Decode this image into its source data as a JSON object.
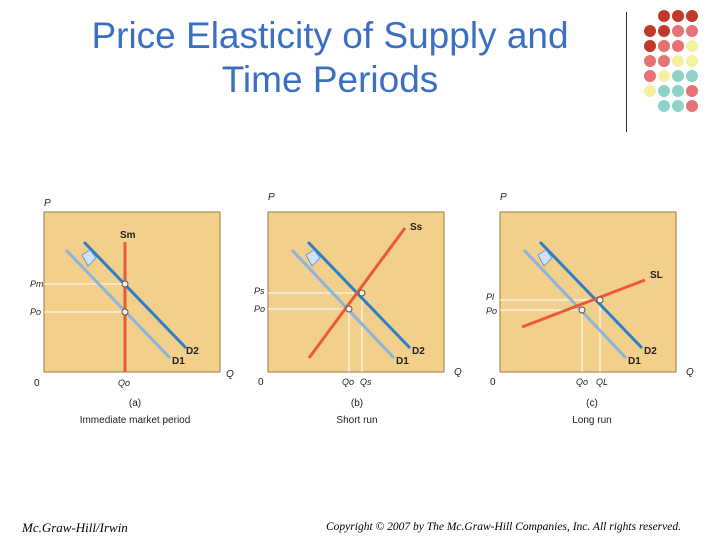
{
  "slide": {
    "title_line1": "Price Elasticity of Supply and",
    "title_line2": "Time Periods",
    "footer_left": "Mc.Graw-Hill/Irwin",
    "footer_right": "Copyright © 2007 by The Mc.Graw-Hill Companies, Inc. All rights reserved.",
    "dot_colors": [
      "#c0392b",
      "#e57373",
      "#f4f1a0",
      "#8fd3c8"
    ]
  },
  "panels": [
    {
      "axis_p": "P",
      "axis_q": "Q",
      "origin": "0",
      "supply_label": "Sm",
      "d1_label": "D1",
      "d2_label": "D2",
      "price_labels": [
        "Pm",
        "Po"
      ],
      "quantity_labels": [
        "Qo"
      ],
      "caption_letter": "(a)",
      "caption_text": "Immediate market period"
    },
    {
      "axis_p": "P",
      "axis_q": "Q",
      "origin": "0",
      "supply_label": "Ss",
      "d1_label": "D1",
      "d2_label": "D2",
      "price_labels": [
        "Ps",
        "Po"
      ],
      "quantity_labels": [
        "Qo",
        "Qs"
      ],
      "caption_letter": "(b)",
      "caption_text": "Short run"
    },
    {
      "axis_p": "P",
      "axis_q": "Q",
      "origin": "0",
      "supply_label": "SL",
      "d1_label": "D1",
      "d2_label": "D2",
      "price_labels": [
        "Pl",
        "Po"
      ],
      "quantity_labels": [
        "Qo",
        "QL"
      ],
      "caption_letter": "(c)",
      "caption_text": "Long run"
    }
  ],
  "colors": {
    "title": "#3b6fc4",
    "panel_bg": "#f2cf8b",
    "supply_line": "#ea5a35",
    "demand_d1": "#8cb4df",
    "demand_d2": "#2e7fc9"
  }
}
